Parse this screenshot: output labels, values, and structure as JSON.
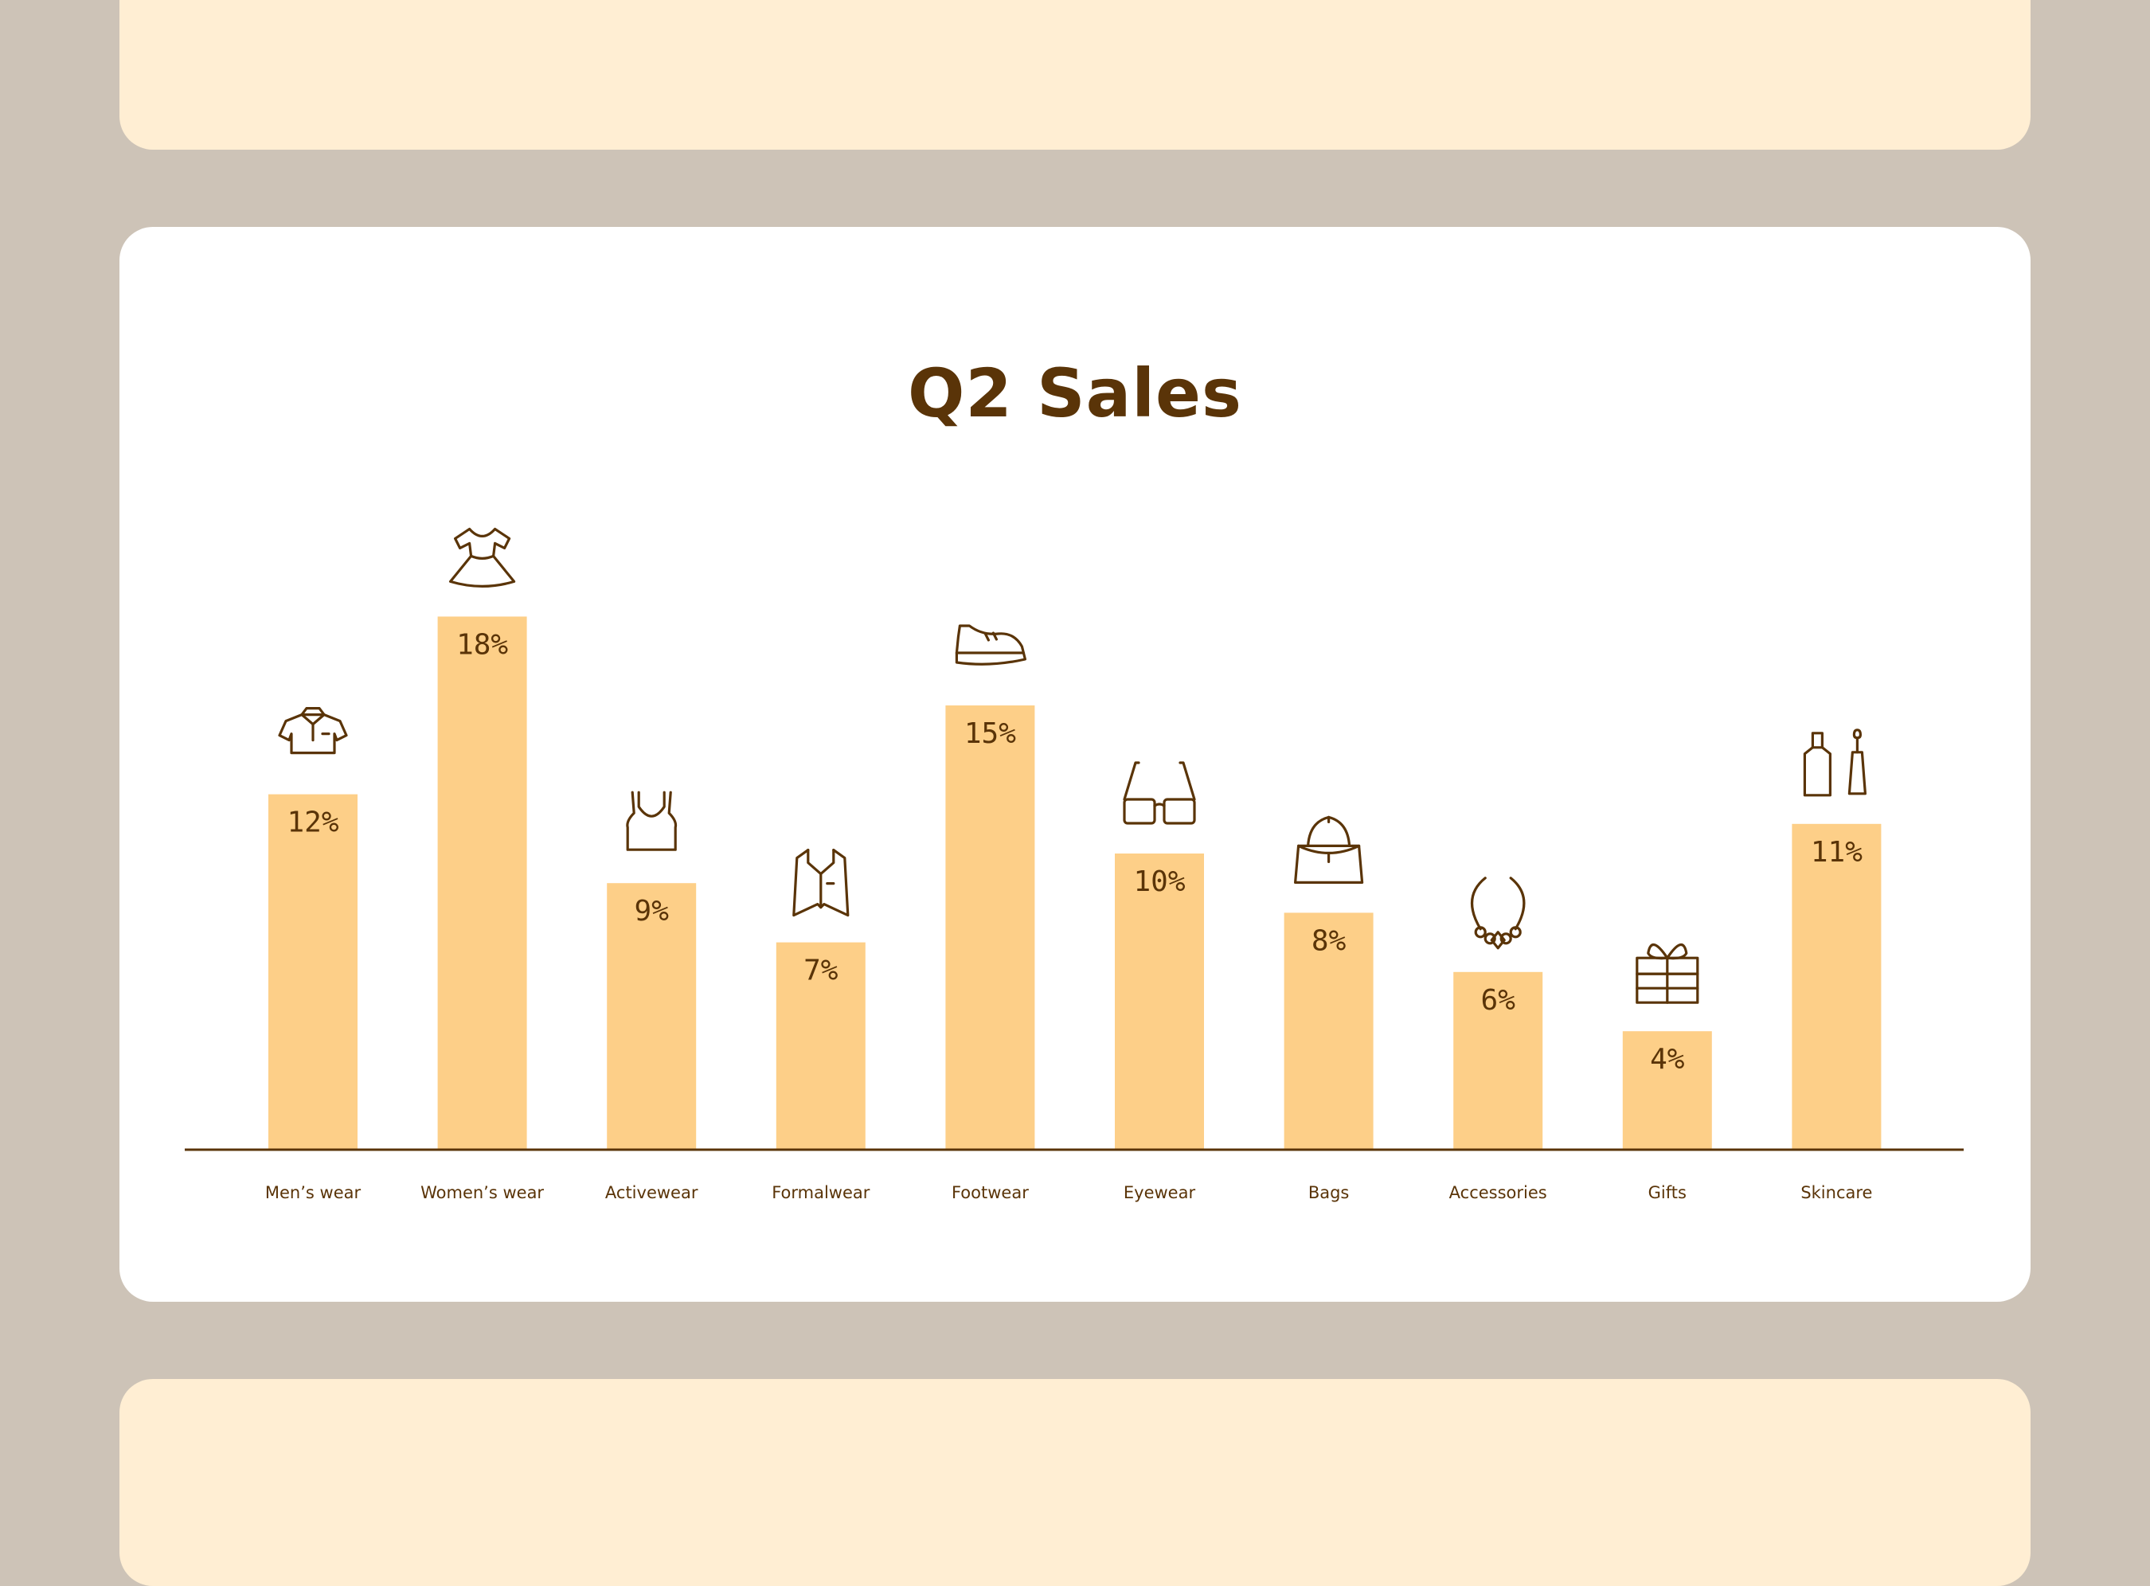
{
  "colors": {
    "background": "#cdc3b7",
    "card": "#ffffff",
    "card_alt": "#ffeed3",
    "bar": "#fdcf88",
    "text": "#5a3408"
  },
  "chart_data": {
    "type": "bar",
    "title": "Q2 Sales",
    "xlabel": "",
    "ylabel": "",
    "ylim": [
      0,
      20
    ],
    "grid": false,
    "categories": [
      "Men’s wear",
      "Women’s wear",
      "Activewear",
      "Formalwear",
      "Footwear",
      "Eyewear",
      "Bags",
      "Accessories",
      "Gifts",
      "Skincare"
    ],
    "values": [
      12,
      18,
      9,
      7,
      15,
      10,
      8,
      6,
      4,
      11
    ],
    "value_labels": [
      "12%",
      "18%",
      "9%",
      "7%",
      "15%",
      "10%",
      "8%",
      "6%",
      "4%",
      "11%"
    ],
    "icons": [
      "polo-shirt-icon",
      "dress-icon",
      "tank-top-icon",
      "vest-icon",
      "sneaker-icon",
      "sunglasses-icon",
      "handbag-icon",
      "necklace-icon",
      "gift-icon",
      "nail-polish-icon"
    ]
  }
}
